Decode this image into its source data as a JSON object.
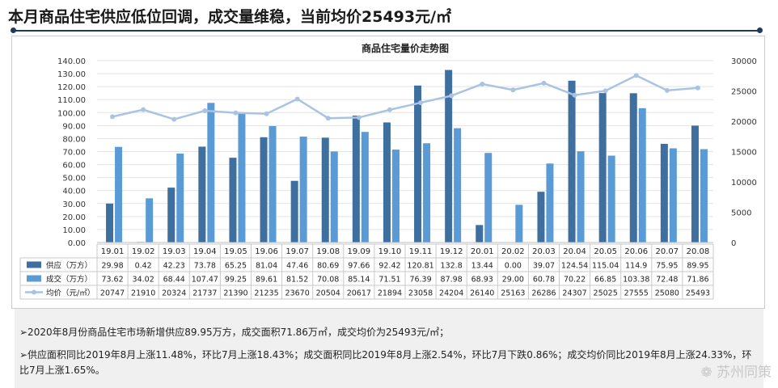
{
  "headline": "本月商品住宅供应低位回调，成交量维稳，当前均价25493元/㎡",
  "chart_data": {
    "type": "bar",
    "title": "商品住宅量价走势图",
    "categories": [
      "19.01",
      "19.02",
      "19.03",
      "19.04",
      "19.05",
      "19.06",
      "19.07",
      "19.08",
      "19.09",
      "19.10",
      "19.11",
      "19.12",
      "20.01",
      "20.02",
      "20.03",
      "20.04",
      "20.05",
      "20.06",
      "20.07",
      "20.08"
    ],
    "left_axis": {
      "ylim": [
        0,
        140
      ],
      "ticks": [
        "0.00",
        "10.00",
        "20.00",
        "30.00",
        "40.00",
        "50.00",
        "60.00",
        "70.00",
        "80.00",
        "90.00",
        "100.00",
        "110.00",
        "120.00",
        "130.00",
        "140.00"
      ]
    },
    "right_axis": {
      "ylim": [
        0,
        30000
      ],
      "ticks": [
        "0",
        "5000",
        "10000",
        "15000",
        "20000",
        "25000",
        "30000"
      ]
    },
    "series": [
      {
        "name": "供应（万方）",
        "type": "bar",
        "axis": "left",
        "color": "#3f6f9f",
        "values": [
          29.98,
          0.42,
          42.23,
          73.78,
          65.25,
          81.04,
          47.46,
          80.69,
          97.66,
          92.42,
          120.81,
          132.8,
          13.44,
          0.0,
          39.07,
          124.54,
          115.04,
          114.9,
          75.95,
          89.95
        ],
        "labels": [
          "29.98",
          "0.42",
          "42.23",
          "73.78",
          "65.25",
          "81.04",
          "47.46",
          "80.69",
          "97.66",
          "92.42",
          "120.81",
          "132.8",
          "13.44",
          "0.00",
          "39.07",
          "124.54",
          "115.04",
          "114.9",
          "75.95",
          "89.95"
        ]
      },
      {
        "name": "成交（万方）",
        "type": "bar",
        "axis": "left",
        "color": "#5b9bd5",
        "values": [
          73.62,
          34.02,
          68.44,
          107.47,
          99.25,
          89.61,
          81.52,
          70.08,
          85.14,
          71.51,
          76.39,
          87.98,
          68.93,
          29.0,
          60.78,
          70.22,
          66.85,
          103.38,
          72.48,
          71.86
        ],
        "labels": [
          "73.62",
          "34.02",
          "68.44",
          "107.47",
          "99.25",
          "89.61",
          "81.52",
          "70.08",
          "85.14",
          "71.51",
          "76.39",
          "87.98",
          "68.93",
          "29.00",
          "60.78",
          "70.22",
          "66.85",
          "103.38",
          "72.48",
          "71.86"
        ]
      },
      {
        "name": "均价（元/㎡）",
        "type": "line",
        "axis": "right",
        "color": "#a9c4e2",
        "values": [
          20747,
          21910,
          20324,
          21737,
          21390,
          21235,
          23670,
          20504,
          20617,
          21894,
          23058,
          24204,
          26140,
          25163,
          26286,
          24307,
          25025,
          27555,
          25080,
          25493
        ],
        "labels": [
          "20747",
          "21910",
          "20324",
          "21737",
          "21390",
          "21235",
          "23670",
          "20504",
          "20617",
          "21894",
          "23058",
          "24204",
          "26140",
          "25163",
          "26286",
          "24307",
          "25025",
          "27555",
          "25080",
          "25493"
        ]
      }
    ]
  },
  "notes": [
    "➢2020年8月份商品住宅市场新增供应89.95万方，成交面积71.86万㎡，成交均价为25493元/㎡；",
    "➢供应面积同比2019年8月上涨11.48%，环比7月上涨18.43%；成交面积同比2019年8月上涨2.54%，环比7月下跌0.86%；成交均价同比2019年8月上涨24.33%，环比7月上涨1.65%。"
  ],
  "watermark": "苏州同策"
}
